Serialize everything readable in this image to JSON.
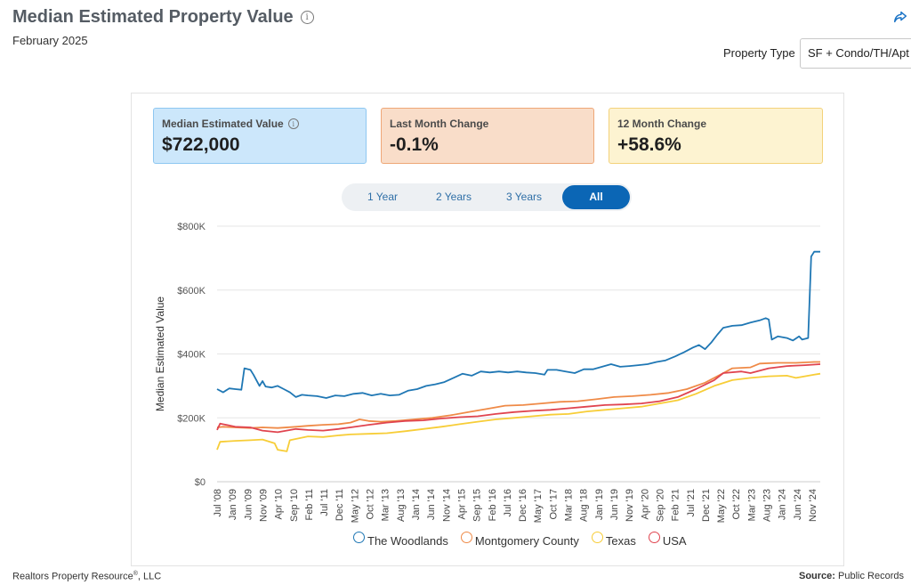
{
  "header": {
    "title": "Median Estimated Property Value",
    "subtitle": "February 2025",
    "info_icon_glyph": "i"
  },
  "property_type": {
    "label": "Property Type",
    "value": "SF + Condo/TH/Apt"
  },
  "cards": [
    {
      "label": "Median Estimated Value",
      "value": "$722,000",
      "has_info": true,
      "bg": "#cce7fb",
      "border": "#8ec7f1"
    },
    {
      "label": "Last Month Change",
      "value": "-0.1%",
      "has_info": false,
      "bg": "#f9ddc9",
      "border": "#eea777"
    },
    {
      "label": "12 Month Change",
      "value": "+58.6%",
      "has_info": false,
      "bg": "#fdf3d1",
      "border": "#f3d27a"
    }
  ],
  "tabs": [
    {
      "label": "1 Year",
      "active": false
    },
    {
      "label": "2 Years",
      "active": false
    },
    {
      "label": "3 Years",
      "active": false
    },
    {
      "label": "All",
      "active": true
    }
  ],
  "footer": {
    "left_name": "Realtors Property Resource",
    "left_mark": "®",
    "left_suffix": ", LLC",
    "right_label": "Source:",
    "right_value": "Public Records"
  },
  "chart_data": {
    "type": "line",
    "ylabel": "Median Estimated Value",
    "yticks": [
      0,
      200000,
      400000,
      600000,
      800000
    ],
    "ytick_labels": [
      "$0",
      "$200K",
      "$400K",
      "$600K",
      "$800K"
    ],
    "ylim": [
      0,
      800000
    ],
    "x_start": "2008-07",
    "x_end": "2025-02",
    "xtick_labels": [
      "Jul '08",
      "Jan '09",
      "Jun '09",
      "Nov '09",
      "Apr '10",
      "Sep '10",
      "Feb '11",
      "Jul '11",
      "Dec '11",
      "May '12",
      "Oct '12",
      "Mar '13",
      "Aug '13",
      "Jan '14",
      "Jun '14",
      "Nov '14",
      "Apr '15",
      "Sep '15",
      "Feb '16",
      "Jul '16",
      "Dec '16",
      "May '17",
      "Oct '17",
      "Mar '18",
      "Aug '18",
      "Jan '19",
      "Jun '19",
      "Nov '19",
      "Apr '20",
      "Sep '20",
      "Feb '21",
      "Jul '21",
      "Dec '21",
      "May '22",
      "Oct '22",
      "Mar '23",
      "Aug '23",
      "Jan '24",
      "Jun '24",
      "Nov '24"
    ],
    "grid": true,
    "legend_position": "bottom",
    "series": [
      {
        "name": "The Woodlands",
        "color": "#1f77b4",
        "points": [
          [
            "2008-07",
            290000
          ],
          [
            "2008-09",
            280000
          ],
          [
            "2008-11",
            292000
          ],
          [
            "2009-01",
            290000
          ],
          [
            "2009-03",
            288000
          ],
          [
            "2009-04",
            355000
          ],
          [
            "2009-06",
            350000
          ],
          [
            "2009-07",
            335000
          ],
          [
            "2009-09",
            300000
          ],
          [
            "2009-10",
            315000
          ],
          [
            "2009-11",
            298000
          ],
          [
            "2010-01",
            295000
          ],
          [
            "2010-03",
            300000
          ],
          [
            "2010-05",
            290000
          ],
          [
            "2010-07",
            280000
          ],
          [
            "2010-09",
            265000
          ],
          [
            "2010-11",
            272000
          ],
          [
            "2011-01",
            270000
          ],
          [
            "2011-04",
            268000
          ],
          [
            "2011-07",
            262000
          ],
          [
            "2011-10",
            270000
          ],
          [
            "2012-01",
            268000
          ],
          [
            "2012-04",
            275000
          ],
          [
            "2012-07",
            278000
          ],
          [
            "2012-10",
            270000
          ],
          [
            "2013-01",
            275000
          ],
          [
            "2013-04",
            270000
          ],
          [
            "2013-07",
            272000
          ],
          [
            "2013-10",
            285000
          ],
          [
            "2014-01",
            290000
          ],
          [
            "2014-04",
            300000
          ],
          [
            "2014-07",
            305000
          ],
          [
            "2014-10",
            312000
          ],
          [
            "2015-01",
            325000
          ],
          [
            "2015-04",
            338000
          ],
          [
            "2015-07",
            332000
          ],
          [
            "2015-10",
            345000
          ],
          [
            "2016-01",
            342000
          ],
          [
            "2016-04",
            345000
          ],
          [
            "2016-07",
            342000
          ],
          [
            "2016-10",
            345000
          ],
          [
            "2017-01",
            342000
          ],
          [
            "2017-04",
            340000
          ],
          [
            "2017-07",
            335000
          ],
          [
            "2017-08",
            350000
          ],
          [
            "2017-11",
            350000
          ],
          [
            "2018-02",
            345000
          ],
          [
            "2018-05",
            340000
          ],
          [
            "2018-08",
            352000
          ],
          [
            "2018-11",
            352000
          ],
          [
            "2019-02",
            360000
          ],
          [
            "2019-05",
            368000
          ],
          [
            "2019-08",
            360000
          ],
          [
            "2019-11",
            362000
          ],
          [
            "2020-02",
            365000
          ],
          [
            "2020-05",
            368000
          ],
          [
            "2020-08",
            375000
          ],
          [
            "2020-11",
            380000
          ],
          [
            "2021-02",
            392000
          ],
          [
            "2021-05",
            405000
          ],
          [
            "2021-08",
            420000
          ],
          [
            "2021-10",
            428000
          ],
          [
            "2021-12",
            415000
          ],
          [
            "2022-02",
            435000
          ],
          [
            "2022-04",
            460000
          ],
          [
            "2022-06",
            482000
          ],
          [
            "2022-09",
            488000
          ],
          [
            "2022-12",
            490000
          ],
          [
            "2023-03",
            498000
          ],
          [
            "2023-06",
            505000
          ],
          [
            "2023-08",
            512000
          ],
          [
            "2023-09",
            508000
          ],
          [
            "2023-10",
            445000
          ],
          [
            "2023-12",
            455000
          ],
          [
            "2024-03",
            450000
          ],
          [
            "2024-05",
            442000
          ],
          [
            "2024-07",
            455000
          ],
          [
            "2024-08",
            445000
          ],
          [
            "2024-10",
            450000
          ],
          [
            "2024-11",
            705000
          ],
          [
            "2024-12",
            720000
          ],
          [
            "2025-02",
            720000
          ]
        ]
      },
      {
        "name": "Montgomery County",
        "color": "#ef8a47",
        "points": [
          [
            "2008-07",
            170000
          ],
          [
            "2008-09",
            172000
          ],
          [
            "2009-01",
            170000
          ],
          [
            "2009-06",
            168000
          ],
          [
            "2009-10",
            170000
          ],
          [
            "2010-03",
            168000
          ],
          [
            "2010-09",
            172000
          ],
          [
            "2011-01",
            175000
          ],
          [
            "2011-06",
            178000
          ],
          [
            "2011-11",
            180000
          ],
          [
            "2012-03",
            185000
          ],
          [
            "2012-06",
            195000
          ],
          [
            "2012-09",
            190000
          ],
          [
            "2013-01",
            188000
          ],
          [
            "2013-06",
            190000
          ],
          [
            "2013-12",
            195000
          ],
          [
            "2014-06",
            200000
          ],
          [
            "2014-12",
            208000
          ],
          [
            "2015-06",
            218000
          ],
          [
            "2015-12",
            228000
          ],
          [
            "2016-06",
            238000
          ],
          [
            "2016-12",
            240000
          ],
          [
            "2017-06",
            245000
          ],
          [
            "2017-12",
            250000
          ],
          [
            "2018-06",
            252000
          ],
          [
            "2018-12",
            258000
          ],
          [
            "2019-06",
            265000
          ],
          [
            "2019-12",
            268000
          ],
          [
            "2020-06",
            272000
          ],
          [
            "2020-12",
            278000
          ],
          [
            "2021-06",
            290000
          ],
          [
            "2021-12",
            310000
          ],
          [
            "2022-06",
            340000
          ],
          [
            "2022-09",
            355000
          ],
          [
            "2023-03",
            358000
          ],
          [
            "2023-06",
            370000
          ],
          [
            "2023-12",
            372000
          ],
          [
            "2024-06",
            372000
          ],
          [
            "2024-12",
            375000
          ],
          [
            "2025-02",
            375000
          ]
        ]
      },
      {
        "name": "Texas",
        "color": "#f7cd37",
        "points": [
          [
            "2008-07",
            100000
          ],
          [
            "2008-08",
            125000
          ],
          [
            "2009-01",
            128000
          ],
          [
            "2009-06",
            130000
          ],
          [
            "2009-10",
            132000
          ],
          [
            "2010-02",
            120000
          ],
          [
            "2010-03",
            100000
          ],
          [
            "2010-06",
            95000
          ],
          [
            "2010-07",
            130000
          ],
          [
            "2011-01",
            142000
          ],
          [
            "2011-06",
            140000
          ],
          [
            "2011-11",
            145000
          ],
          [
            "2012-03",
            148000
          ],
          [
            "2012-09",
            150000
          ],
          [
            "2013-03",
            152000
          ],
          [
            "2013-09",
            158000
          ],
          [
            "2014-03",
            165000
          ],
          [
            "2014-09",
            172000
          ],
          [
            "2015-03",
            180000
          ],
          [
            "2015-09",
            188000
          ],
          [
            "2016-03",
            195000
          ],
          [
            "2016-09",
            200000
          ],
          [
            "2017-03",
            205000
          ],
          [
            "2017-09",
            210000
          ],
          [
            "2018-03",
            212000
          ],
          [
            "2018-09",
            220000
          ],
          [
            "2019-03",
            225000
          ],
          [
            "2019-09",
            230000
          ],
          [
            "2020-03",
            235000
          ],
          [
            "2020-09",
            245000
          ],
          [
            "2021-03",
            255000
          ],
          [
            "2021-09",
            275000
          ],
          [
            "2022-03",
            300000
          ],
          [
            "2022-09",
            318000
          ],
          [
            "2023-03",
            325000
          ],
          [
            "2023-09",
            330000
          ],
          [
            "2024-03",
            332000
          ],
          [
            "2024-06",
            325000
          ],
          [
            "2024-12",
            335000
          ],
          [
            "2025-02",
            338000
          ]
        ]
      },
      {
        "name": "USA",
        "color": "#e0444f",
        "points": [
          [
            "2008-07",
            162000
          ],
          [
            "2008-08",
            182000
          ],
          [
            "2009-01",
            172000
          ],
          [
            "2009-06",
            170000
          ],
          [
            "2009-10",
            160000
          ],
          [
            "2010-03",
            155000
          ],
          [
            "2010-09",
            165000
          ],
          [
            "2011-01",
            162000
          ],
          [
            "2011-06",
            160000
          ],
          [
            "2011-11",
            165000
          ],
          [
            "2012-03",
            170000
          ],
          [
            "2012-09",
            178000
          ],
          [
            "2013-03",
            185000
          ],
          [
            "2013-09",
            190000
          ],
          [
            "2014-03",
            192000
          ],
          [
            "2014-09",
            198000
          ],
          [
            "2015-03",
            202000
          ],
          [
            "2015-09",
            205000
          ],
          [
            "2016-03",
            212000
          ],
          [
            "2016-09",
            218000
          ],
          [
            "2017-03",
            222000
          ],
          [
            "2017-09",
            225000
          ],
          [
            "2018-03",
            230000
          ],
          [
            "2018-09",
            235000
          ],
          [
            "2019-03",
            240000
          ],
          [
            "2019-09",
            242000
          ],
          [
            "2020-03",
            245000
          ],
          [
            "2020-09",
            252000
          ],
          [
            "2021-03",
            265000
          ],
          [
            "2021-09",
            290000
          ],
          [
            "2022-03",
            318000
          ],
          [
            "2022-06",
            340000
          ],
          [
            "2022-12",
            345000
          ],
          [
            "2023-03",
            340000
          ],
          [
            "2023-09",
            355000
          ],
          [
            "2024-03",
            362000
          ],
          [
            "2024-09",
            365000
          ],
          [
            "2025-02",
            368000
          ]
        ]
      }
    ]
  }
}
